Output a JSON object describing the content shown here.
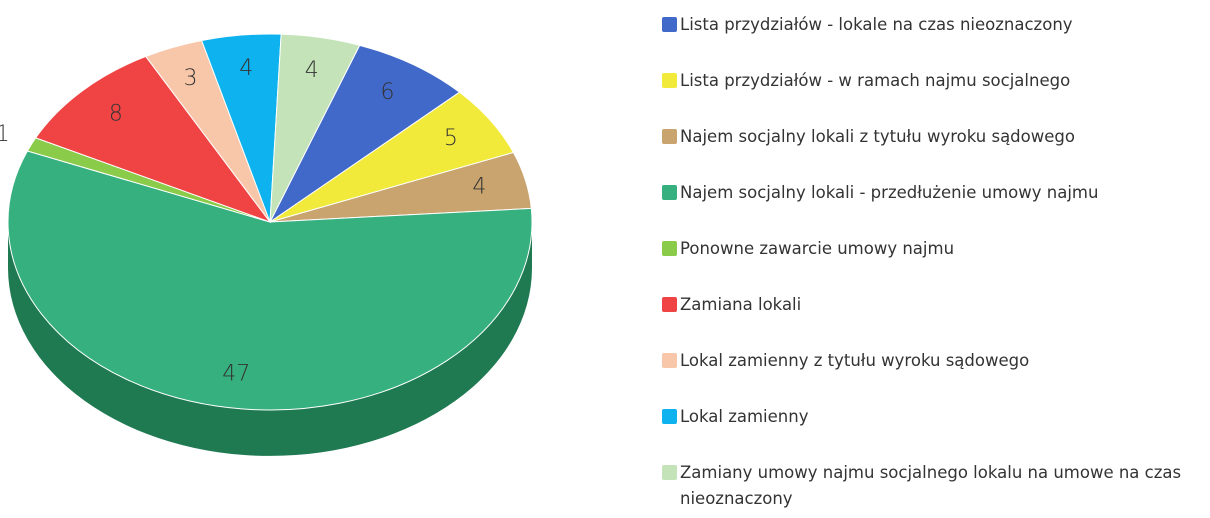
{
  "chart_data": {
    "type": "pie",
    "categories": [
      "Lista przydziałów - lokale na czas nieoznaczony",
      "Lista przydziałów - w ramach najmu socjalnego",
      "Najem socjalny lokali z tytułu wyroku sądowego",
      "Najem socjalny lokali - przedłużenie umowy najmu",
      "Ponowne zawarcie umowy najmu",
      "Zamiana lokali",
      "Lokal zamienny z tytułu wyroku sądowego",
      "Lokal zamienny",
      "Zamiany umowy najmu socjalnego lokalu na umowe na czas nieoznaczony"
    ],
    "values": [
      6,
      5,
      4,
      47,
      1,
      8,
      3,
      4,
      4
    ],
    "colors": [
      "#4169c9",
      "#f2ea3a",
      "#c9a46e",
      "#36b07f",
      "#8bcb4a",
      "#f04444",
      "#f8c6a8",
      "#0db2ee",
      "#c4e3b8"
    ],
    "legend": "right"
  }
}
